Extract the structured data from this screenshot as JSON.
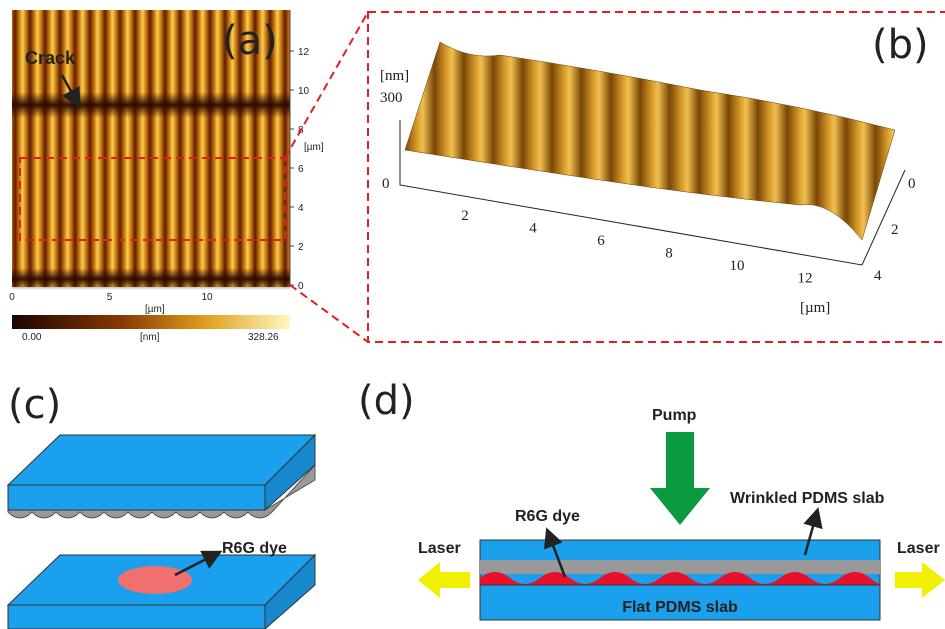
{
  "panels": {
    "a": {
      "label": "(a)",
      "annotation": "Crack",
      "x_ticks": [
        "0",
        "5",
        "10"
      ],
      "x_unit": "[µm]",
      "y_ticks": [
        "0",
        "2",
        "4",
        "6",
        "8",
        "10",
        "12"
      ],
      "y_unit": "[µm]",
      "colorbar": {
        "min": "0.00",
        "unit": "[nm]",
        "max": "328.26"
      }
    },
    "b": {
      "label": "(b)",
      "z_unit": "[nm]",
      "z_ticks": [
        "300",
        "0"
      ],
      "x_ticks": [
        "2",
        "4",
        "6",
        "8",
        "10",
        "12"
      ],
      "y_ticks": [
        "0",
        "2",
        "4"
      ],
      "x_unit": "[µm]"
    },
    "c": {
      "label": "(c)",
      "annotation": "R6G dye"
    },
    "d": {
      "label": "(d)",
      "pump": "Pump",
      "laser_left": "Laser",
      "laser_right": "Laser",
      "dye": "R6G dye",
      "wrinkled": "Wrinkled PDMS slab",
      "flat": "Flat PDMS slab"
    }
  }
}
